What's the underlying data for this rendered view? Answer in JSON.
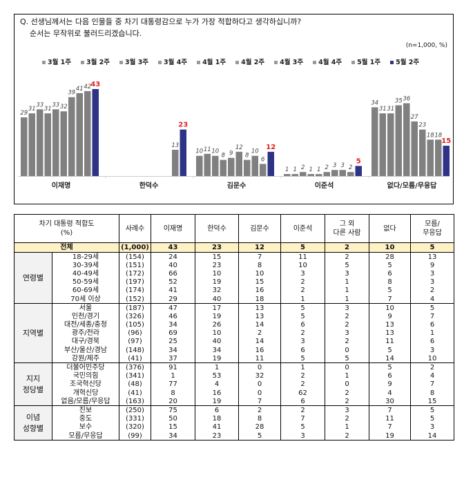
{
  "question": {
    "line1": "Q. 선생님께서는 다음 인물들 중 차기 대통령감으로 누가 가장 적합하다고 생각하십니까?",
    "line2": "순서는 무작위로 불러드리겠습니다.",
    "note": "(n=1,000, %)"
  },
  "colors": {
    "previous": "#808080",
    "latest": "#2e3386",
    "latest_label": "#e0201f"
  },
  "chart_data": {
    "type": "bar",
    "title": "",
    "categories": [
      "이재명",
      "한덕수",
      "김문수",
      "이준석",
      "없다/모름/무응답"
    ],
    "series": [
      {
        "name": "3월 1주",
        "values": [
          29,
          null,
          10,
          1,
          34
        ]
      },
      {
        "name": "3월 2주",
        "values": [
          31,
          null,
          11,
          1,
          31
        ]
      },
      {
        "name": "3월 3주",
        "values": [
          33,
          null,
          10,
          2,
          31
        ]
      },
      {
        "name": "3월 4주",
        "values": [
          31,
          null,
          8,
          1,
          35
        ]
      },
      {
        "name": "4월 1주",
        "values": [
          33,
          null,
          9,
          1,
          36
        ]
      },
      {
        "name": "4월 2주",
        "values": [
          32,
          null,
          12,
          2,
          27
        ]
      },
      {
        "name": "4월 3주",
        "values": [
          39,
          null,
          8,
          3,
          23
        ]
      },
      {
        "name": "4월 4주",
        "values": [
          41,
          null,
          10,
          3,
          18
        ]
      },
      {
        "name": "5월 1주",
        "values": [
          42,
          13,
          6,
          2,
          18
        ]
      },
      {
        "name": "5월 2주",
        "values": [
          43,
          23,
          12,
          5,
          15
        ]
      }
    ],
    "legend": "top",
    "grid": false
  },
  "table": {
    "header": [
      "차기 대통령 적합도\n(%)",
      "사례수",
      "이재명",
      "한덕수",
      "김문수",
      "이준석",
      "그 외\n다른 사람",
      "없다",
      "모름/\n무응답"
    ],
    "total": [
      "전체",
      "(1,000)",
      "43",
      "23",
      "12",
      "5",
      "2",
      "10",
      "5"
    ],
    "groups": [
      {
        "name": "연령별",
        "rows": [
          [
            "18-29세",
            "(154)",
            "24",
            "15",
            "7",
            "11",
            "2",
            "28",
            "13"
          ],
          [
            "30-39세",
            "(151)",
            "40",
            "23",
            "8",
            "10",
            "5",
            "5",
            "9"
          ],
          [
            "40-49세",
            "(172)",
            "66",
            "10",
            "10",
            "3",
            "3",
            "6",
            "3"
          ],
          [
            "50-59세",
            "(197)",
            "52",
            "19",
            "15",
            "2",
            "1",
            "8",
            "3"
          ],
          [
            "60-69세",
            "(174)",
            "41",
            "32",
            "16",
            "2",
            "1",
            "5",
            "2"
          ],
          [
            "70세 이상",
            "(152)",
            "29",
            "40",
            "18",
            "1",
            "1",
            "7",
            "4"
          ]
        ]
      },
      {
        "name": "지역별",
        "rows": [
          [
            "서울",
            "(187)",
            "47",
            "17",
            "13",
            "5",
            "3",
            "10",
            "5"
          ],
          [
            "인천/경기",
            "(326)",
            "46",
            "19",
            "13",
            "5",
            "2",
            "9",
            "7"
          ],
          [
            "대전/세종/충청",
            "(105)",
            "34",
            "26",
            "14",
            "6",
            "2",
            "13",
            "6"
          ],
          [
            "광주/전라",
            "(96)",
            "69",
            "10",
            "2",
            "2",
            "3",
            "13",
            "1"
          ],
          [
            "대구/경북",
            "(97)",
            "25",
            "40",
            "14",
            "3",
            "2",
            "11",
            "6"
          ],
          [
            "부산/울산/경남",
            "(148)",
            "34",
            "34",
            "16",
            "6",
            "0",
            "5",
            "3"
          ],
          [
            "강원/제주",
            "(41)",
            "37",
            "19",
            "11",
            "5",
            "5",
            "14",
            "10"
          ]
        ]
      },
      {
        "name": "지지\n정당별",
        "rows": [
          [
            "더불어민주당",
            "(376)",
            "91",
            "1",
            "0",
            "1",
            "0",
            "5",
            "2"
          ],
          [
            "국민의힘",
            "(341)",
            "1",
            "53",
            "32",
            "2",
            "1",
            "6",
            "4"
          ],
          [
            "조국혁신당",
            "(48)",
            "77",
            "4",
            "0",
            "2",
            "0",
            "9",
            "7"
          ],
          [
            "개혁신당",
            "(41)",
            "8",
            "16",
            "0",
            "62",
            "2",
            "4",
            "8"
          ],
          [
            "없음/모름/무응답",
            "(163)",
            "20",
            "19",
            "7",
            "6",
            "2",
            "30",
            "15"
          ]
        ]
      },
      {
        "name": "이념\n성향별",
        "rows": [
          [
            "진보",
            "(250)",
            "75",
            "6",
            "2",
            "2",
            "3",
            "7",
            "5"
          ],
          [
            "중도",
            "(331)",
            "50",
            "18",
            "8",
            "7",
            "2",
            "11",
            "5"
          ],
          [
            "보수",
            "(320)",
            "15",
            "41",
            "28",
            "5",
            "1",
            "7",
            "3"
          ],
          [
            "모름/무응답",
            "(99)",
            "34",
            "23",
            "5",
            "3",
            "2",
            "19",
            "14"
          ]
        ]
      }
    ]
  }
}
